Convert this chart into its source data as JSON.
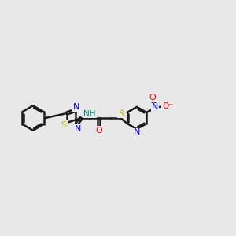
{
  "background_color": "#e8e8e8",
  "bond_color": "#1a1a1a",
  "N_color": "#0000ee",
  "S_color": "#bbbb00",
  "O_color": "#ff0000",
  "NH_color": "#008888",
  "figsize": [
    3.0,
    3.0
  ],
  "dpi": 100,
  "xlim": [
    0,
    15
  ],
  "ylim": [
    2,
    9
  ]
}
